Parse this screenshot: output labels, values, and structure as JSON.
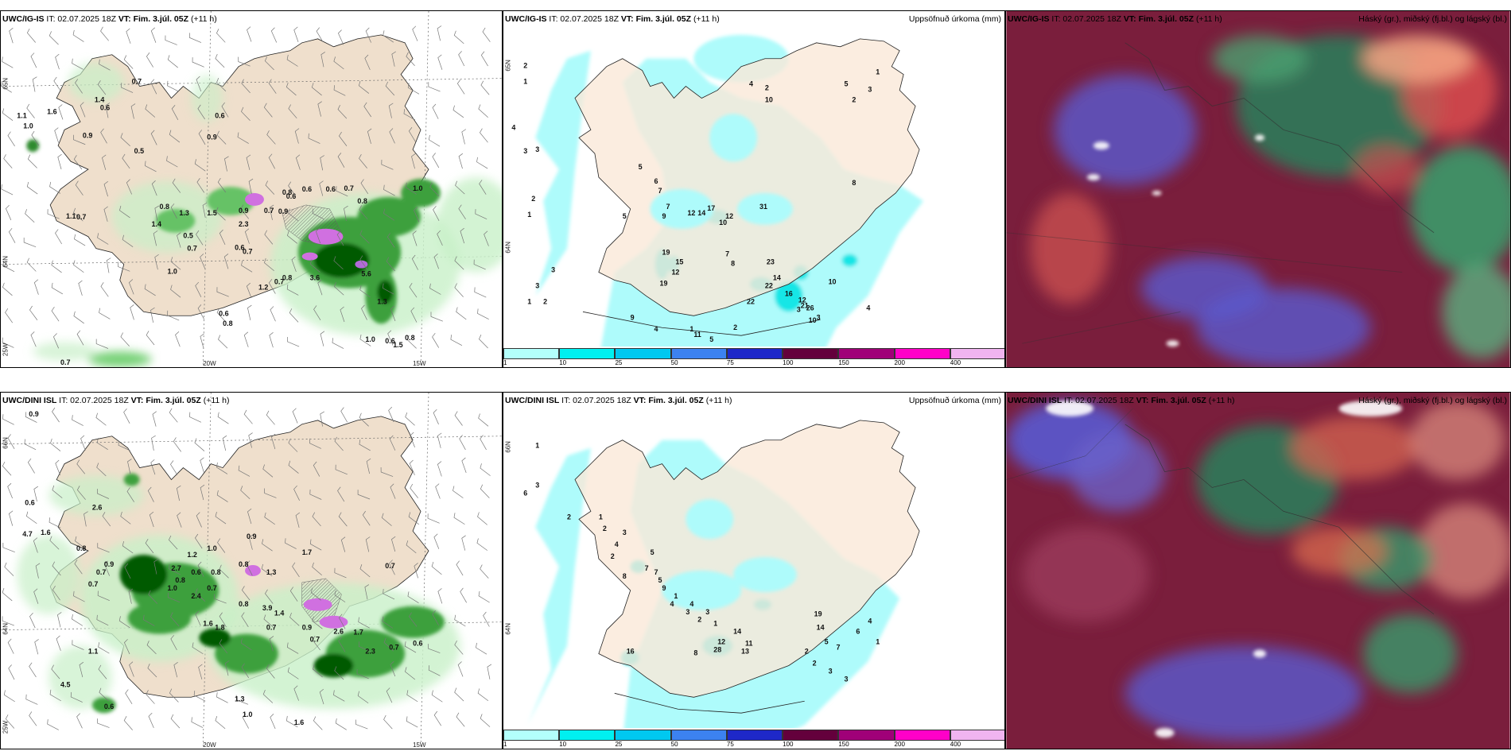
{
  "panels": [
    {
      "model": "UWC/IG-IS",
      "init": "02.07.2025 18Z",
      "valid": "Fim. 3.júl. 05Z",
      "lead": "(+11 h)",
      "subtitle": "",
      "ticks": [
        "65N",
        "64N",
        "25W",
        "20W",
        "15W"
      ],
      "labels": [
        "0.7",
        "1.1",
        "1.0",
        "1.6",
        "1.4",
        "0.6",
        "0.9",
        "0.5",
        "0.6",
        "0.9",
        "1.4",
        "1.1",
        "0.7",
        "0.8",
        "1.3",
        "1.5",
        "0.9",
        "0.5",
        "0.7",
        "1.0",
        "0.6",
        "2.3",
        "0.7",
        "0.6",
        "0.9",
        "0.7",
        "0.6",
        "0.8",
        "0.6",
        "0.7",
        "1.0",
        "0.8",
        "1.2",
        "0.7",
        "0.8",
        "3.6",
        "5.6",
        "1.3",
        "0.6",
        "0.8",
        "0.7",
        "1.0",
        "1.5",
        "0.6",
        "0.8"
      ]
    },
    {
      "model": "UWC/IG-IS",
      "init": "02.07.2025 18Z",
      "valid": "Fim. 3.júl. 05Z",
      "lead": "(+11 h)",
      "subtitle": "Uppsöfnuð úrkoma (mm)",
      "ticks": [
        "65N",
        "64N"
      ],
      "labels": [
        "2",
        "1",
        "4",
        "3",
        "3",
        "2",
        "1",
        "3",
        "2",
        "3",
        "1",
        "5",
        "6",
        "7",
        "9",
        "7",
        "5",
        "12",
        "14",
        "17",
        "10",
        "12",
        "31",
        "19",
        "15",
        "12",
        "19",
        "8",
        "7",
        "23",
        "14",
        "22",
        "22",
        "16",
        "12",
        "21",
        "26",
        "10",
        "10",
        "9",
        "4",
        "1",
        "11",
        "5",
        "2",
        "3",
        "2",
        "4",
        "10",
        "5",
        "2",
        "3",
        "1",
        "8",
        "3",
        "4"
      ],
      "colorbar": {
        "colors": [
          "#b3fffb",
          "#00f0f0",
          "#00c8f0",
          "#3c82f0",
          "#1e28c8",
          "#64003c",
          "#a00078",
          "#ff00c8",
          "#f0b4f0"
        ],
        "ticks": [
          "1",
          "10",
          "25",
          "50",
          "75",
          "100",
          "150",
          "200",
          "400"
        ]
      }
    },
    {
      "model": "UWC/IG-IS",
      "init": "02.07.2025 18Z",
      "valid": "Fim. 3.júl. 05Z",
      "lead": "(+11 h)",
      "subtitle": "Háský (gr.), miðský (fj.bl.) og lágský (bl.)"
    },
    {
      "model": "UWC/DINI ISL",
      "init": "02.07.2025 18Z",
      "valid": "Fim. 3.júl. 05Z",
      "lead": "(+11 h)",
      "subtitle": "",
      "ticks": [
        "66N",
        "64N",
        "25W",
        "20W",
        "15W"
      ],
      "labels": [
        "0.9",
        "0.6",
        "2.6",
        "4.7",
        "1.6",
        "0.8",
        "0.9",
        "0.7",
        "0.7",
        "1.0",
        "0.8",
        "0.9",
        "2.7",
        "1.2",
        "0.8",
        "1.3",
        "1.7",
        "0.7",
        "0.8",
        "0.6",
        "1.0",
        "2.4",
        "0.7",
        "0.8",
        "1.6",
        "3.9",
        "1.4",
        "1.8",
        "0.9",
        "0.7",
        "2.6",
        "1.7",
        "2.3",
        "0.7",
        "0.6",
        "4.5",
        "1.1",
        "1.3",
        "0.6",
        "1.0",
        "0.7",
        "1.6"
      ]
    },
    {
      "model": "UWC/DINI ISL",
      "init": "02.07.2025 18Z",
      "valid": "Fim. 3.júl. 05Z",
      "lead": "(+11 h)",
      "subtitle": "Uppsöfnuð úrkoma (mm)",
      "ticks": [
        "66N",
        "64N"
      ],
      "labels": [
        "1",
        "3",
        "6",
        "2",
        "1",
        "2",
        "3",
        "4",
        "2",
        "5",
        "7",
        "9",
        "1",
        "4",
        "3",
        "1",
        "8",
        "7",
        "5",
        "4",
        "3",
        "2",
        "16",
        "28",
        "8",
        "12",
        "14",
        "11",
        "13",
        "19",
        "14",
        "5",
        "7",
        "6",
        "4",
        "1",
        "2",
        "2",
        "3",
        "3"
      ],
      "colorbar": {
        "colors": [
          "#b3fffb",
          "#00f0f0",
          "#00c8f0",
          "#3c82f0",
          "#1e28c8",
          "#64003c",
          "#a00078",
          "#ff00c8",
          "#f0b4f0"
        ],
        "ticks": [
          "1",
          "10",
          "25",
          "50",
          "75",
          "100",
          "150",
          "200",
          "400"
        ]
      }
    },
    {
      "model": "UWC/DINI ISL",
      "init": "02.07.2025 18Z",
      "valid": "Fim. 3.júl. 05Z",
      "lead": "(+11 h)",
      "subtitle": "Háský (gr.), miðský (fj.bl.) og lágský (bl.)"
    }
  ]
}
